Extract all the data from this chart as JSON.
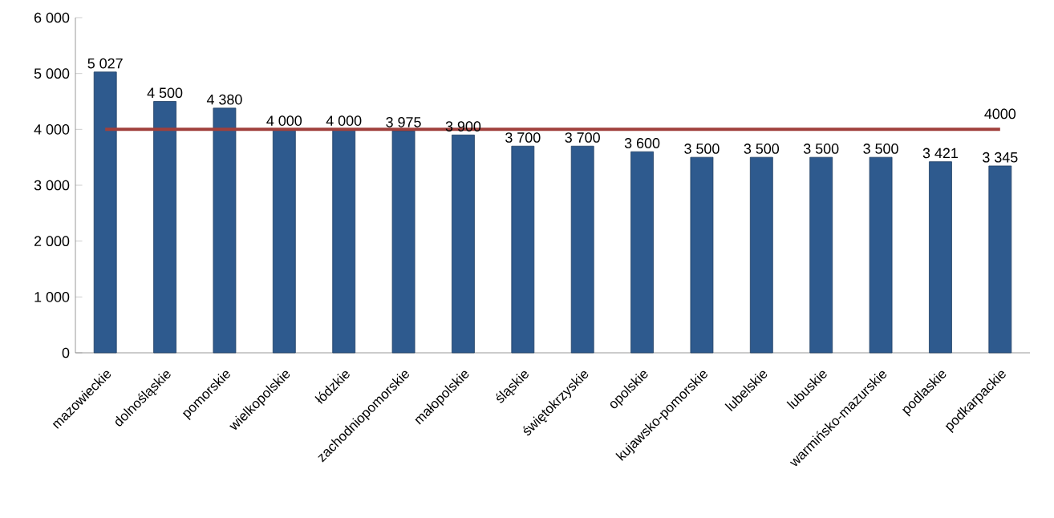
{
  "chart_data": {
    "type": "bar",
    "categories": [
      "mazowieckie",
      "dolnośląskie",
      "pomorskie",
      "wielkopolskie",
      "łódzkie",
      "zachodniopomorskie",
      "małopolskie",
      "śląskie",
      "świętokrzyskie",
      "opolskie",
      "kujawsko-pomorskie",
      "lubelskie",
      "lubuskie",
      "warmińsko-mazurskie",
      "podlaskie",
      "podkarpackie"
    ],
    "values": [
      5027,
      4500,
      4380,
      4000,
      4000,
      3975,
      3900,
      3700,
      3700,
      3600,
      3500,
      3500,
      3500,
      3500,
      3421,
      3345
    ],
    "value_labels": [
      "5 027",
      "4 500",
      "4 380",
      "4 000",
      "4 000",
      "3 975",
      "3 900",
      "3 700",
      "3 700",
      "3 600",
      "3 500",
      "3 500",
      "3 500",
      "3 500",
      "3 421",
      "3 345"
    ],
    "color": "#2e5a8e",
    "ylim": [
      0,
      6000
    ],
    "yticks": [
      0,
      {
        "value": 1000,
        "label": "1 000"
      },
      {
        "value": 2000,
        "label": "2 000"
      },
      {
        "value": 3000,
        "label": "3 000"
      },
      {
        "value": 4000,
        "label": "4 000"
      },
      {
        "value": 5000,
        "label": "5 000"
      },
      {
        "value": 6000,
        "label": "6 000"
      }
    ],
    "ref_lines": [
      {
        "axis": "y",
        "value": 4000,
        "label": "4000",
        "color": "#a0403c"
      }
    ],
    "grid": false
  }
}
